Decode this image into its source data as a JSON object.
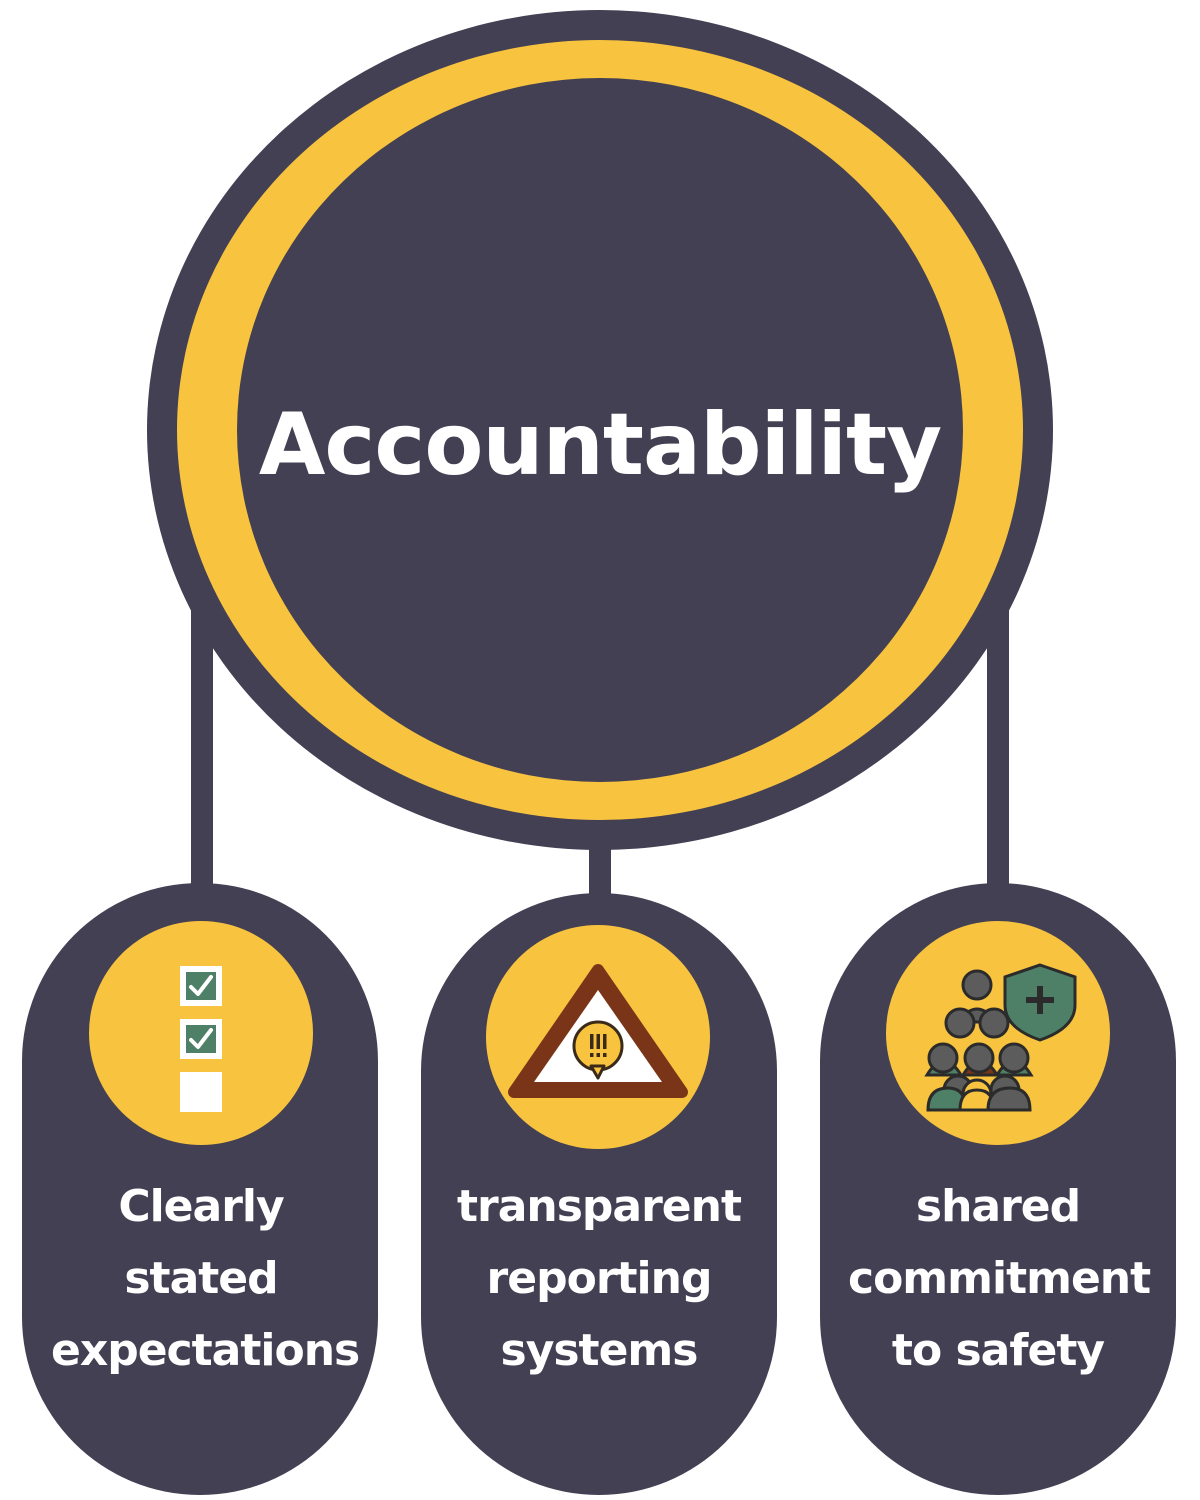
{
  "colors": {
    "dark": "#434053",
    "accent": "#f8c33f",
    "white": "#ffffff",
    "icon_green": "#4e7f67",
    "icon_brown": "#7a3518"
  },
  "hub": {
    "title": "Accountability"
  },
  "pillars": [
    {
      "icon": "checklist-icon",
      "lines": [
        "Clearly",
        "stated",
        "expectations"
      ]
    },
    {
      "icon": "warning-triangle-icon",
      "lines": [
        "transparent",
        "reporting",
        "systems"
      ]
    },
    {
      "icon": "people-shield-icon",
      "lines": [
        "shared",
        "commitment",
        "to safety"
      ]
    }
  ]
}
